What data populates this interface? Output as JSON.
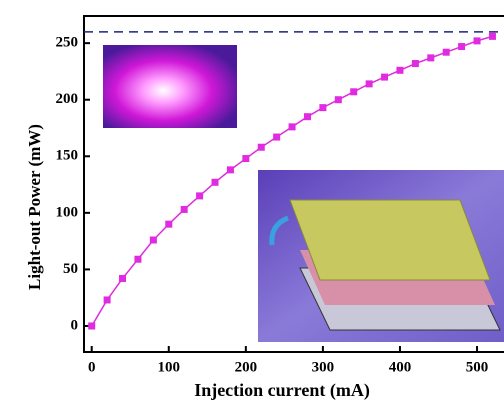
{
  "chart_data": {
    "type": "line",
    "x_label": "Injection current (mA)",
    "y_label": "Light-out Power (mW)",
    "x": [
      0,
      20,
      40,
      60,
      80,
      100,
      120,
      140,
      160,
      180,
      200,
      220,
      240,
      260,
      280,
      300,
      320,
      340,
      360,
      380,
      400,
      420,
      440,
      460,
      480,
      500,
      520
    ],
    "series": [
      {
        "color": "#e02be0",
        "values": [
          0,
          23,
          42,
          59,
          76,
          90,
          103,
          115,
          127,
          138,
          148,
          158,
          167,
          176,
          185,
          193,
          200,
          207,
          214,
          220,
          226,
          232,
          237,
          242,
          247,
          252,
          256
        ]
      }
    ],
    "reference_line": 260,
    "reference_color": "#1a237e",
    "xlim": [
      -10,
      535
    ],
    "xticks": [
      0,
      100,
      200,
      300,
      400,
      500
    ],
    "ylim": [
      -23,
      274
    ],
    "yticks": [
      0,
      50,
      100,
      150,
      200,
      250
    ]
  }
}
